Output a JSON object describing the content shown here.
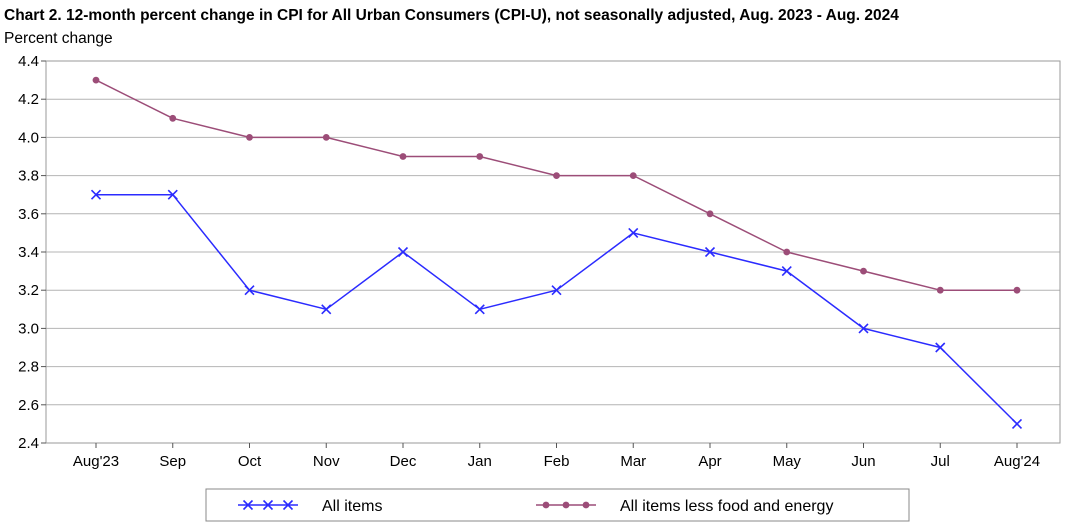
{
  "chart_data": {
    "type": "line",
    "title": "Chart 2. 12-month percent change in CPI for All Urban Consumers (CPI-U), not seasonally adjusted, Aug. 2023 - Aug. 2024",
    "ylabel": "Percent change",
    "xlabel": "",
    "categories": [
      "Aug'23",
      "Sep",
      "Oct",
      "Nov",
      "Dec",
      "Jan",
      "Feb",
      "Mar",
      "Apr",
      "May",
      "Jun",
      "Jul",
      "Aug'24"
    ],
    "ylim": [
      2.4,
      4.4
    ],
    "yticks": [
      "2.4",
      "2.6",
      "2.8",
      "3.0",
      "3.2",
      "3.4",
      "3.6",
      "3.8",
      "4.0",
      "4.2",
      "4.4"
    ],
    "grid": "horizontal",
    "legend_position": "bottom",
    "series": [
      {
        "name": "All items",
        "color": "#2b2bff",
        "marker": "x",
        "values": [
          3.7,
          3.7,
          3.2,
          3.1,
          3.4,
          3.1,
          3.2,
          3.5,
          3.4,
          3.3,
          3.0,
          2.9,
          2.5
        ]
      },
      {
        "name": "All items less food and energy",
        "color": "#9c4d78",
        "marker": "circle",
        "values": [
          4.3,
          4.1,
          4.0,
          4.0,
          3.9,
          3.9,
          3.8,
          3.8,
          3.6,
          3.4,
          3.3,
          3.2,
          3.2
        ]
      }
    ]
  }
}
